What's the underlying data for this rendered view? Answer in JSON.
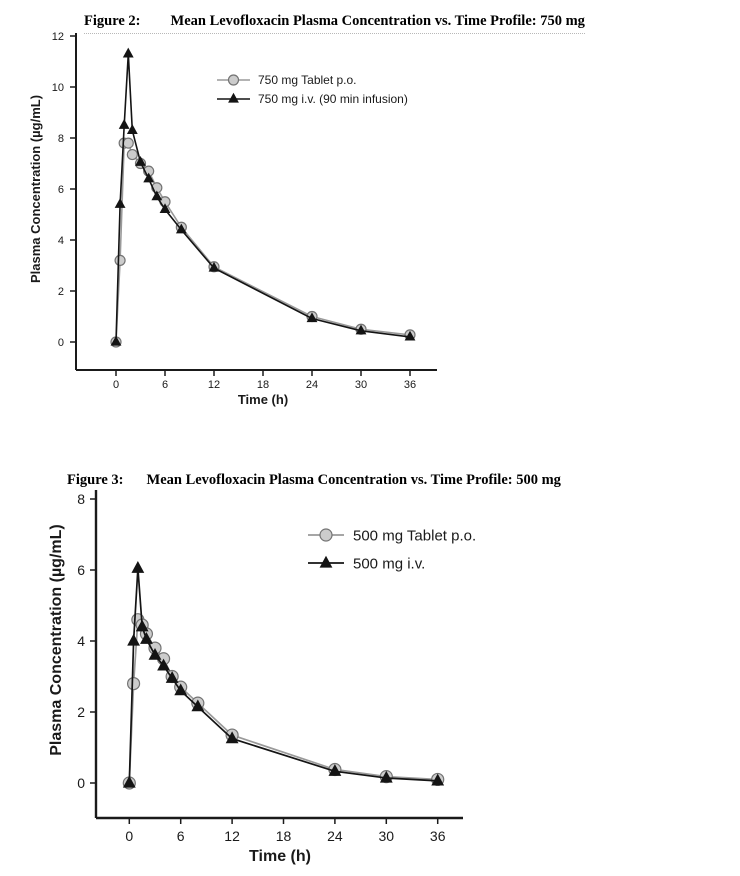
{
  "page": {
    "background": "#ffffff"
  },
  "chart_data": [
    {
      "type": "line",
      "figure_label": "Figure 2:",
      "title": "Mean Levofloxacin Plasma Concentration vs. Time Profile: 750 mg",
      "xlabel": "Time (h)",
      "ylabel": "Plasma Concentration (µg/mL)",
      "xlim": [
        0,
        36
      ],
      "ylim": [
        0,
        12
      ],
      "xticks": [
        0,
        6,
        12,
        18,
        24,
        30,
        36
      ],
      "yticks": [
        0,
        2,
        4,
        6,
        8,
        10,
        12
      ],
      "grid": false,
      "legend_position": "upper-center-inside",
      "axis_color": "#1a1a1a",
      "x": [
        0,
        0.5,
        1,
        1.5,
        2,
        3,
        4,
        5,
        6,
        8,
        12,
        24,
        30,
        36
      ],
      "series": [
        {
          "name": "750 mg Tablet p.o.",
          "marker": "circle",
          "line_color": "#9a9a9a",
          "marker_fill": "#cccccc",
          "marker_stroke": "#737373",
          "values": [
            0,
            3.2,
            7.8,
            7.8,
            7.35,
            7.0,
            6.7,
            6.05,
            5.5,
            4.5,
            2.95,
            1.0,
            0.5,
            0.28
          ]
        },
        {
          "name": "750 mg i.v. (90 min infusion)",
          "marker": "triangle",
          "line_color": "#141414",
          "marker_fill": "#141414",
          "marker_stroke": "#141414",
          "values": [
            0,
            5.4,
            8.5,
            11.3,
            8.3,
            7.05,
            6.4,
            5.7,
            5.2,
            4.4,
            2.9,
            0.92,
            0.44,
            0.2
          ]
        }
      ]
    },
    {
      "type": "line",
      "figure_label": "Figure 3:",
      "title": "Mean Levofloxacin Plasma Concentration vs. Time Profile: 500 mg",
      "xlabel": "Time (h)",
      "ylabel": "Plasma Concentration (µg/mL)",
      "xlim": [
        0,
        36
      ],
      "ylim": [
        0,
        8
      ],
      "xticks": [
        0,
        6,
        12,
        18,
        24,
        30,
        36
      ],
      "yticks": [
        0,
        2,
        4,
        6,
        8
      ],
      "grid": false,
      "legend_position": "upper-center-inside",
      "axis_color": "#1a1a1a",
      "x": [
        0,
        0.5,
        1,
        1.5,
        2,
        3,
        4,
        5,
        6,
        8,
        12,
        24,
        30,
        36
      ],
      "series": [
        {
          "name": "500 mg Tablet p.o.",
          "marker": "circle",
          "line_color": "#9a9a9a",
          "marker_fill": "#cccccc",
          "marker_stroke": "#737373",
          "values": [
            0,
            2.8,
            4.6,
            4.45,
            4.2,
            3.8,
            3.5,
            3.0,
            2.7,
            2.25,
            1.35,
            0.38,
            0.18,
            0.1
          ]
        },
        {
          "name": "500 mg i.v.",
          "marker": "triangle",
          "line_color": "#141414",
          "marker_fill": "#141414",
          "marker_stroke": "#141414",
          "values": [
            0,
            4.0,
            6.05,
            4.4,
            4.05,
            3.6,
            3.3,
            2.95,
            2.6,
            2.15,
            1.25,
            0.33,
            0.14,
            0.06
          ]
        }
      ]
    }
  ]
}
